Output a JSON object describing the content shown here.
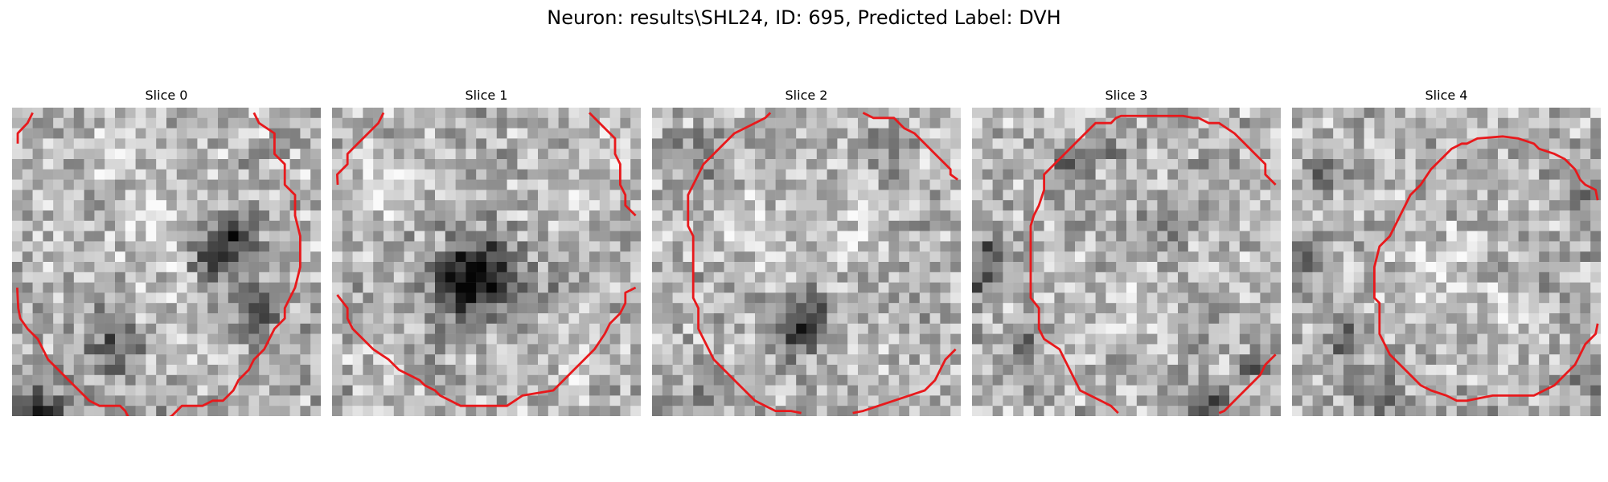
{
  "figure": {
    "title": "Neuron: results\\SHL24, ID: 695, Predicted Label: DVH"
  },
  "panels": [
    {
      "title": "Slice 0",
      "contour_color": "#e8191c",
      "dark_regions": [
        [
          20,
          14,
          2.8,
          0.48
        ],
        [
          24,
          20,
          2.2,
          0.35
        ],
        [
          10,
          23,
          2.8,
          0.32
        ],
        [
          3,
          30,
          3,
          0.45
        ],
        [
          19,
          33,
          3,
          0.35
        ],
        [
          15,
          31,
          1.8,
          0.25
        ],
        [
          22,
          12,
          1.8,
          0.25
        ]
      ],
      "light_regions": [
        [
          15,
          12,
          4.2,
          0.16
        ],
        [
          5,
          15,
          2.5,
          0.1
        ],
        [
          16,
          22,
          3.5,
          0.12
        ],
        [
          11,
          5,
          3.2,
          0.12
        ]
      ],
      "contours": [
        [
          [
            0.55,
            3.5
          ],
          [
            0.55,
            2.5
          ],
          [
            1.5,
            1.5
          ],
          [
            2.0,
            0.5
          ]
        ],
        [
          [
            23.5,
            0.5
          ],
          [
            24.0,
            1.5
          ],
          [
            25.5,
            2.5
          ],
          [
            25.5,
            4.5
          ],
          [
            26.5,
            5.5
          ],
          [
            26.5,
            7.5
          ],
          [
            27.5,
            8.5
          ],
          [
            27.5,
            10.5
          ],
          [
            28.0,
            12.5
          ],
          [
            28.0,
            15.5
          ],
          [
            27.5,
            17.5
          ],
          [
            27.0,
            18.5
          ],
          [
            26.5,
            19.5
          ],
          [
            26.5,
            20.5
          ],
          [
            25.5,
            21.5
          ],
          [
            25.0,
            22.5
          ],
          [
            24.5,
            23.5
          ],
          [
            23.5,
            24.5
          ],
          [
            23.0,
            25.5
          ],
          [
            22.0,
            26.5
          ],
          [
            21.5,
            27.5
          ],
          [
            20.5,
            28.5
          ],
          [
            19.5,
            28.5
          ],
          [
            18.5,
            29.0
          ],
          [
            16.5,
            29.0
          ],
          [
            15.5,
            30.0
          ],
          [
            14.5,
            30.5
          ],
          [
            11.5,
            30.5
          ],
          [
            11.0,
            29.5
          ],
          [
            10.5,
            29.0
          ],
          [
            8.5,
            29.0
          ],
          [
            7.5,
            28.5
          ],
          [
            6.5,
            27.5
          ],
          [
            5.5,
            26.5
          ],
          [
            4.5,
            25.5
          ],
          [
            3.5,
            24.5
          ],
          [
            3.0,
            23.5
          ],
          [
            2.5,
            22.5
          ],
          [
            1.5,
            21.5
          ],
          [
            0.8,
            20.5
          ],
          [
            0.6,
            19.5
          ],
          [
            0.5,
            17.5
          ]
        ]
      ]
    },
    {
      "title": "Slice 1",
      "contour_color": "#e8191c",
      "dark_regions": [
        [
          14.5,
          16,
          3.5,
          0.45
        ],
        [
          13,
          17.5,
          3.6,
          0.4
        ],
        [
          22,
          17,
          2,
          0.18
        ],
        [
          9,
          24,
          2,
          0.15
        ]
      ],
      "light_regions": [
        [
          5,
          7,
          3.5,
          0.15
        ],
        [
          24,
          8,
          3,
          0.12
        ],
        [
          6,
          24,
          3,
          0.12
        ],
        [
          23,
          25,
          3,
          0.12
        ]
      ],
      "contours": [
        [
          [
            0.55,
            7.5
          ],
          [
            0.5,
            6.5
          ],
          [
            1.5,
            5.5
          ],
          [
            1.5,
            4.5
          ],
          [
            2.5,
            3.5
          ],
          [
            3.5,
            2.5
          ],
          [
            4.5,
            1.5
          ],
          [
            5.0,
            0.5
          ]
        ],
        [
          [
            25.0,
            0.5
          ],
          [
            26.5,
            2.0
          ],
          [
            27.5,
            3.0
          ],
          [
            27.5,
            4.5
          ],
          [
            28.0,
            5.5
          ],
          [
            28.0,
            7.5
          ],
          [
            28.5,
            8.5
          ],
          [
            28.5,
            9.5
          ],
          [
            29.5,
            10.5
          ]
        ],
        [
          [
            0.5,
            18.2
          ],
          [
            1.5,
            19.5
          ],
          [
            1.5,
            20.5
          ],
          [
            2.0,
            21.5
          ],
          [
            3.0,
            22.5
          ],
          [
            4.0,
            23.5
          ],
          [
            5.5,
            24.5
          ],
          [
            6.5,
            25.5
          ],
          [
            7.5,
            26.0
          ],
          [
            8.5,
            26.5
          ],
          [
            9.0,
            27.0
          ],
          [
            10.0,
            27.5
          ],
          [
            10.5,
            28.0
          ],
          [
            11.5,
            28.5
          ],
          [
            12.5,
            29.0
          ],
          [
            17.0,
            29.0
          ],
          [
            18.5,
            28.0
          ],
          [
            21.5,
            27.5
          ],
          [
            22.5,
            26.5
          ],
          [
            23.5,
            25.5
          ],
          [
            24.5,
            24.5
          ],
          [
            25.5,
            23.5
          ],
          [
            26.5,
            22.0
          ],
          [
            27.0,
            21.0
          ],
          [
            28.0,
            20.0
          ],
          [
            28.5,
            19.0
          ],
          [
            28.5,
            18.0
          ],
          [
            29.5,
            17.5
          ]
        ]
      ]
    },
    {
      "title": "Slice 2",
      "contour_color": "#e8191c",
      "dark_regions": [
        [
          15,
          20,
          2.2,
          0.45
        ],
        [
          14,
          22.5,
          1.5,
          0.35
        ],
        [
          5,
          5,
          2.4,
          0.22
        ],
        [
          23,
          4,
          2,
          0.15
        ],
        [
          6,
          28,
          2,
          0.2
        ]
      ],
      "light_regions": [
        [
          9,
          10,
          3,
          0.16
        ],
        [
          13,
          14,
          3,
          0.12
        ],
        [
          20,
          12,
          3,
          0.12
        ],
        [
          20,
          24,
          2.5,
          0.1
        ]
      ],
      "contours": [
        [
          [
            20.5,
            0.5
          ],
          [
            21.5,
            1.0
          ],
          [
            23.5,
            1.0
          ],
          [
            24.5,
            2.0
          ],
          [
            25.5,
            2.5
          ],
          [
            26.5,
            3.5
          ],
          [
            27.5,
            4.5
          ],
          [
            28.5,
            5.5
          ],
          [
            29.0,
            6.0
          ],
          [
            29.0,
            6.5
          ],
          [
            29.7,
            7.0
          ]
        ],
        [
          [
            11.5,
            0.5
          ],
          [
            11.0,
            1.0
          ],
          [
            10.0,
            1.5
          ],
          [
            9.0,
            2.0
          ],
          [
            8.0,
            2.5
          ],
          [
            7.0,
            3.5
          ],
          [
            6.0,
            4.5
          ],
          [
            5.0,
            5.5
          ],
          [
            4.5,
            6.5
          ],
          [
            4.0,
            7.5
          ],
          [
            3.5,
            8.5
          ],
          [
            3.5,
            11.5
          ],
          [
            4.0,
            12.5
          ],
          [
            4.0,
            18.5
          ],
          [
            4.5,
            19.5
          ],
          [
            4.5,
            21.5
          ],
          [
            5.0,
            22.5
          ],
          [
            5.5,
            23.5
          ],
          [
            6.0,
            24.5
          ],
          [
            7.0,
            25.5
          ],
          [
            8.0,
            26.5
          ],
          [
            9.0,
            27.5
          ],
          [
            10.0,
            28.5
          ],
          [
            11.0,
            29.0
          ],
          [
            12.0,
            29.5
          ],
          [
            13.5,
            29.5
          ],
          [
            14.5,
            29.7
          ]
        ],
        [
          [
            29.5,
            23.5
          ],
          [
            28.5,
            24.5
          ],
          [
            28.0,
            25.5
          ],
          [
            27.5,
            26.5
          ],
          [
            26.5,
            27.5
          ],
          [
            25.0,
            28.0
          ],
          [
            23.5,
            28.5
          ],
          [
            22.0,
            29.0
          ],
          [
            20.5,
            29.5
          ],
          [
            19.5,
            29.7
          ]
        ]
      ]
    },
    {
      "title": "Slice 3",
      "contour_color": "#e8191c",
      "dark_regions": [
        [
          9.5,
          6,
          1.8,
          0.35
        ],
        [
          2,
          14,
          1.8,
          0.42
        ],
        [
          0.5,
          17,
          1.2,
          0.45
        ],
        [
          5,
          23,
          2,
          0.3
        ],
        [
          23,
          29,
          2.3,
          0.4
        ],
        [
          13,
          4,
          1.5,
          0.25
        ],
        [
          27.5,
          25,
          1.5,
          0.3
        ],
        [
          20,
          11,
          2.2,
          0.2
        ]
      ],
      "light_regions": [
        [
          15,
          20,
          3.5,
          0.12
        ],
        [
          24,
          13,
          3,
          0.1
        ]
      ],
      "contours": [
        [
          [
            29.5,
            7.5
          ],
          [
            29.0,
            7.0
          ],
          [
            28.5,
            6.5
          ],
          [
            28.5,
            5.5
          ],
          [
            27.5,
            4.5
          ],
          [
            26.5,
            3.5
          ],
          [
            25.5,
            2.5
          ],
          [
            24.0,
            1.5
          ],
          [
            23.0,
            1.5
          ],
          [
            22.0,
            1.0
          ],
          [
            21.5,
            1.0
          ],
          [
            20.5,
            0.8
          ],
          [
            16.5,
            0.8
          ],
          [
            14.5,
            0.8
          ],
          [
            14.0,
            1.0
          ],
          [
            13.5,
            1.5
          ],
          [
            12.0,
            1.5
          ],
          [
            11.0,
            2.5
          ],
          [
            10.0,
            3.5
          ],
          [
            9.0,
            4.5
          ],
          [
            8.0,
            5.5
          ],
          [
            7.0,
            6.5
          ],
          [
            7.0,
            8.0
          ],
          [
            6.5,
            9.5
          ],
          [
            6.0,
            10.5
          ],
          [
            5.7,
            11.5
          ],
          [
            5.7,
            18.5
          ],
          [
            6.5,
            19.5
          ],
          [
            6.5,
            21.5
          ],
          [
            7.0,
            22.5
          ],
          [
            8.5,
            23.5
          ],
          [
            9.0,
            24.5
          ],
          [
            9.5,
            25.5
          ],
          [
            10.0,
            26.5
          ],
          [
            10.5,
            27.5
          ],
          [
            11.5,
            28.0
          ],
          [
            12.5,
            28.5
          ],
          [
            13.5,
            29.0
          ],
          [
            14.2,
            29.7
          ]
        ],
        [
          [
            29.5,
            24.0
          ],
          [
            28.5,
            25.0
          ],
          [
            28.0,
            26.0
          ],
          [
            27.0,
            27.0
          ],
          [
            26.0,
            28.0
          ],
          [
            25.0,
            29.0
          ],
          [
            24.5,
            29.5
          ],
          [
            24.0,
            29.7
          ]
        ]
      ]
    },
    {
      "title": "Slice 4",
      "contour_color": "#e8191c",
      "dark_regions": [
        [
          1.5,
          14,
          1.8,
          0.3
        ],
        [
          5,
          23,
          2,
          0.28
        ],
        [
          8,
          28,
          2.2,
          0.3
        ],
        [
          27.5,
          9,
          1.5,
          0.3
        ],
        [
          3,
          6,
          1.8,
          0.25
        ],
        [
          25,
          15,
          1.5,
          0.2
        ],
        [
          29,
          27,
          1.5,
          0.25
        ]
      ],
      "light_regions": [
        [
          15,
          15,
          4,
          0.14
        ],
        [
          21,
          20,
          3,
          0.12
        ],
        [
          11,
          3,
          2,
          0.1
        ]
      ],
      "contours": [
        [
          [
            10.0,
            11.5
          ],
          [
            10.5,
            10.5
          ],
          [
            11.0,
            9.5
          ],
          [
            11.5,
            8.5
          ],
          [
            12.5,
            7.5
          ],
          [
            13.5,
            6.0
          ],
          [
            14.5,
            5.0
          ],
          [
            15.5,
            4.0
          ],
          [
            16.5,
            3.5
          ],
          [
            17.0,
            3.5
          ],
          [
            18.0,
            3.0
          ],
          [
            20.5,
            2.8
          ],
          [
            22.0,
            3.0
          ],
          [
            23.5,
            3.5
          ],
          [
            24.0,
            4.0
          ],
          [
            25.5,
            4.5
          ],
          [
            26.5,
            5.0
          ],
          [
            27.5,
            6.0
          ],
          [
            28.0,
            7.0
          ],
          [
            28.5,
            7.5
          ],
          [
            29.5,
            8.0
          ],
          [
            29.7,
            9.0
          ]
        ],
        [
          [
            10.0,
            11.5
          ],
          [
            9.5,
            12.5
          ],
          [
            8.5,
            13.5
          ],
          [
            8.0,
            15.5
          ],
          [
            8.0,
            18.5
          ],
          [
            8.5,
            19.0
          ],
          [
            8.5,
            22.0
          ],
          [
            9.0,
            23.0
          ],
          [
            9.5,
            24.0
          ],
          [
            10.5,
            25.0
          ],
          [
            11.5,
            26.0
          ],
          [
            12.5,
            27.0
          ],
          [
            13.5,
            27.5
          ],
          [
            15.0,
            28.0
          ],
          [
            16.0,
            28.5
          ],
          [
            17.0,
            28.5
          ],
          [
            19.5,
            28.0
          ],
          [
            23.5,
            28.0
          ],
          [
            24.5,
            27.5
          ],
          [
            25.5,
            27.0
          ],
          [
            26.5,
            26.0
          ],
          [
            27.5,
            25.0
          ],
          [
            28.0,
            24.0
          ],
          [
            28.5,
            23.0
          ],
          [
            29.5,
            22.0
          ],
          [
            29.7,
            21.0
          ]
        ]
      ]
    }
  ]
}
